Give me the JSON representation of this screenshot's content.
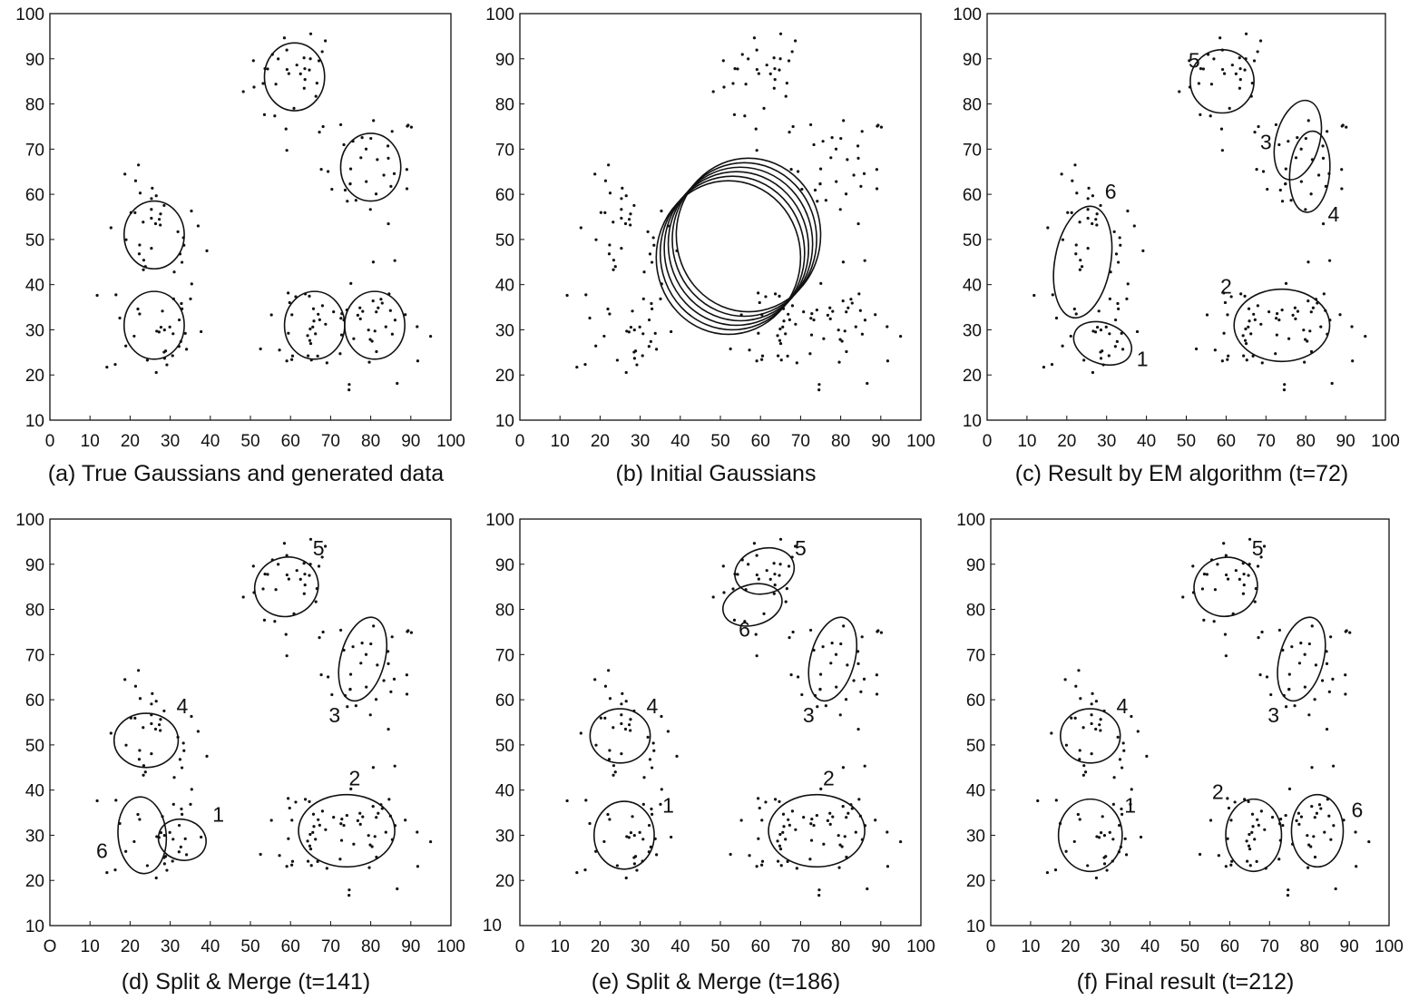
{
  "chart_data": [
    {
      "type": "scatter",
      "caption": "(a) True Gaussians and generated data",
      "xlim": [
        0,
        100
      ],
      "ylim": [
        10,
        100
      ],
      "xticks": [
        "0",
        "10",
        "20",
        "30",
        "40",
        "50",
        "60",
        "70",
        "80",
        "90",
        "100"
      ],
      "yticks": [
        "10",
        "20",
        "30",
        "40",
        "50",
        "60",
        "70",
        "80",
        "90",
        "100"
      ],
      "gaussians": [
        {
          "cx": 61,
          "cy": 86,
          "rx": 7.5,
          "ry": 7.5,
          "angle": 0
        },
        {
          "cx": 80,
          "cy": 66,
          "rx": 7.5,
          "ry": 7.5,
          "angle": 0
        },
        {
          "cx": 26,
          "cy": 51,
          "rx": 7.5,
          "ry": 7.5,
          "angle": 0
        },
        {
          "cx": 26,
          "cy": 31,
          "rx": 7.5,
          "ry": 7.5,
          "angle": 0
        },
        {
          "cx": 66,
          "cy": 31,
          "rx": 7.5,
          "ry": 7.5,
          "angle": 0
        },
        {
          "cx": 81,
          "cy": 31,
          "rx": 7.5,
          "ry": 7.5,
          "angle": 0
        }
      ],
      "labels": []
    },
    {
      "type": "scatter",
      "caption": "(b) Initial Gaussians",
      "xlim": [
        0,
        100
      ],
      "ylim": [
        10,
        100
      ],
      "xticks": [
        "0",
        "10",
        "20",
        "30",
        "40",
        "50",
        "60",
        "70",
        "80",
        "90",
        "100"
      ],
      "yticks": [
        "10",
        "20",
        "30",
        "40",
        "50",
        "60",
        "70",
        "80",
        "90",
        "100"
      ],
      "gaussians": [
        {
          "cx": 52,
          "cy": 46,
          "rx": 18,
          "ry": 17,
          "angle": 0
        },
        {
          "cx": 53,
          "cy": 47,
          "rx": 18,
          "ry": 17,
          "angle": 0
        },
        {
          "cx": 54,
          "cy": 48,
          "rx": 18,
          "ry": 17,
          "angle": 0
        },
        {
          "cx": 55,
          "cy": 49,
          "rx": 18,
          "ry": 17,
          "angle": 0
        },
        {
          "cx": 56,
          "cy": 50,
          "rx": 18,
          "ry": 17,
          "angle": 0
        },
        {
          "cx": 57,
          "cy": 51,
          "rx": 18,
          "ry": 17,
          "angle": 0
        }
      ],
      "labels": []
    },
    {
      "type": "scatter",
      "caption": "(c) Result by EM algorithm (t=72)",
      "xlim": [
        0,
        100
      ],
      "ylim": [
        10,
        100
      ],
      "xticks": [
        "0",
        "10",
        "20",
        "30",
        "40",
        "50",
        "60",
        "70",
        "80",
        "90",
        "100"
      ],
      "yticks": [
        "10",
        "20",
        "30",
        "40",
        "50",
        "60",
        "70",
        "80",
        "90",
        "100"
      ],
      "gaussians": [
        {
          "cx": 59,
          "cy": 85,
          "rx": 8,
          "ry": 7,
          "angle": 0
        },
        {
          "cx": 78,
          "cy": 72,
          "rx": 5.5,
          "ry": 9,
          "angle": 15
        },
        {
          "cx": 81,
          "cy": 65,
          "rx": 5,
          "ry": 9,
          "angle": 5
        },
        {
          "cx": 24,
          "cy": 45,
          "rx": 7,
          "ry": 12.5,
          "angle": 10
        },
        {
          "cx": 29,
          "cy": 27,
          "rx": 7.5,
          "ry": 4.5,
          "angle": 20
        },
        {
          "cx": 74,
          "cy": 31,
          "rx": 12,
          "ry": 8,
          "angle": 0
        }
      ],
      "labels": [
        {
          "text": "5",
          "x": 52,
          "y": 88
        },
        {
          "text": "3",
          "x": 70,
          "y": 70
        },
        {
          "text": "4",
          "x": 87,
          "y": 54
        },
        {
          "text": "6",
          "x": 31,
          "y": 59
        },
        {
          "text": "1",
          "x": 39,
          "y": 22
        },
        {
          "text": "2",
          "x": 60,
          "y": 38
        }
      ]
    },
    {
      "type": "scatter",
      "caption": "(d) Split & Merge (t=141)",
      "xlim": [
        0,
        100
      ],
      "ylim": [
        10,
        100
      ],
      "xticks": [
        "O",
        "10",
        "20",
        "30",
        "40",
        "50",
        "60",
        "70",
        "80",
        "90",
        "100"
      ],
      "yticks": [
        "10",
        "20",
        "30",
        "40",
        "50",
        "60",
        "70",
        "80",
        "90",
        "100"
      ],
      "gaussians": [
        {
          "cx": 59,
          "cy": 85,
          "rx": 8,
          "ry": 6.5,
          "angle": -20
        },
        {
          "cx": 78,
          "cy": 69,
          "rx": 5.5,
          "ry": 9.5,
          "angle": 15
        },
        {
          "cx": 24,
          "cy": 51,
          "rx": 8,
          "ry": 6,
          "angle": 0
        },
        {
          "cx": 23,
          "cy": 30,
          "rx": 6,
          "ry": 8.5,
          "angle": -5
        },
        {
          "cx": 33,
          "cy": 29,
          "rx": 6,
          "ry": 4.5,
          "angle": 15
        },
        {
          "cx": 74,
          "cy": 31,
          "rx": 12,
          "ry": 8,
          "angle": 0
        }
      ],
      "labels": [
        {
          "text": "5",
          "x": 67,
          "y": 92
        },
        {
          "text": "3",
          "x": 71,
          "y": 55
        },
        {
          "text": "4",
          "x": 33,
          "y": 57
        },
        {
          "text": "1",
          "x": 42,
          "y": 33
        },
        {
          "text": "6",
          "x": 13,
          "y": 25
        },
        {
          "text": "2",
          "x": 76,
          "y": 41
        }
      ]
    },
    {
      "type": "scatter",
      "caption": "(e) Split & Merge (t=186)",
      "xlim": [
        0,
        100
      ],
      "ylim": [
        10,
        100
      ],
      "xticks": [
        "0",
        "10",
        "20",
        "30",
        "40",
        "50",
        "60",
        "70",
        "80",
        "90",
        "100"
      ],
      "yticks": [
        "20",
        "30",
        "40",
        "50",
        "60",
        "70",
        "80",
        "90",
        "100"
      ],
      "yticks_extra": "10",
      "gaussians": [
        {
          "cx": 61,
          "cy": 88.5,
          "rx": 7.5,
          "ry": 5,
          "angle": -15
        },
        {
          "cx": 58,
          "cy": 81,
          "rx": 7.5,
          "ry": 4.5,
          "angle": -15
        },
        {
          "cx": 78,
          "cy": 69,
          "rx": 5.5,
          "ry": 9.5,
          "angle": 15
        },
        {
          "cx": 25,
          "cy": 52,
          "rx": 7.5,
          "ry": 6,
          "angle": 0
        },
        {
          "cx": 26,
          "cy": 30,
          "rx": 7.5,
          "ry": 7.5,
          "angle": 0
        },
        {
          "cx": 74,
          "cy": 31,
          "rx": 12,
          "ry": 8,
          "angle": 0
        }
      ],
      "labels": [
        {
          "text": "5",
          "x": 70,
          "y": 92
        },
        {
          "text": "6",
          "x": 56,
          "y": 74
        },
        {
          "text": "3",
          "x": 72,
          "y": 55
        },
        {
          "text": "4",
          "x": 33,
          "y": 57
        },
        {
          "text": "1",
          "x": 37,
          "y": 35
        },
        {
          "text": "2",
          "x": 77,
          "y": 41
        }
      ]
    },
    {
      "type": "scatter",
      "caption": "(f) Final result (t=212)",
      "xlim": [
        0,
        100
      ],
      "ylim": [
        10,
        100
      ],
      "xticks": [
        "0",
        "10",
        "20",
        "30",
        "40",
        "50",
        "60",
        "70",
        "80",
        "90",
        "100"
      ],
      "yticks": [
        "10",
        "20",
        "30",
        "40",
        "50",
        "60",
        "70",
        "80",
        "90",
        "100"
      ],
      "gaussians": [
        {
          "cx": 59,
          "cy": 85,
          "rx": 8,
          "ry": 6.5,
          "angle": -15
        },
        {
          "cx": 78,
          "cy": 69,
          "rx": 5.5,
          "ry": 9.5,
          "angle": 15
        },
        {
          "cx": 25,
          "cy": 52,
          "rx": 7.5,
          "ry": 6,
          "angle": 0
        },
        {
          "cx": 25,
          "cy": 30,
          "rx": 8,
          "ry": 8,
          "angle": 0
        },
        {
          "cx": 66,
          "cy": 30,
          "rx": 7,
          "ry": 8,
          "angle": 0
        },
        {
          "cx": 82,
          "cy": 31,
          "rx": 6.5,
          "ry": 8,
          "angle": 0
        }
      ],
      "labels": [
        {
          "text": "5",
          "x": 67,
          "y": 92
        },
        {
          "text": "3",
          "x": 71,
          "y": 55
        },
        {
          "text": "4",
          "x": 33,
          "y": 57
        },
        {
          "text": "1",
          "x": 35,
          "y": 35
        },
        {
          "text": "2",
          "x": 57,
          "y": 38
        },
        {
          "text": "6",
          "x": 92,
          "y": 34
        }
      ]
    }
  ]
}
